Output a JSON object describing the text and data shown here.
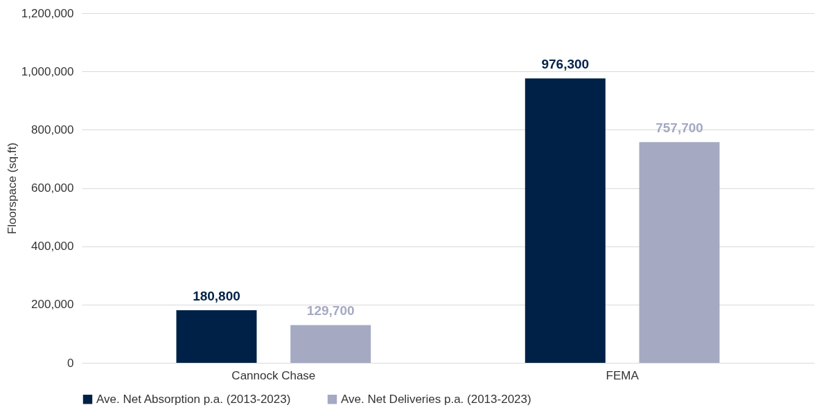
{
  "chart_data": {
    "type": "bar",
    "ylabel": "Floorspace (sq.ft)",
    "categories": [
      "Cannock Chase",
      "FEMA"
    ],
    "series": [
      {
        "name": "Ave. Net Absorption p.a. (2013-2023)",
        "color": "#002147",
        "values": [
          180800,
          976300
        ],
        "value_labels": [
          "180,800",
          "976,300"
        ]
      },
      {
        "name": "Ave. Net Deliveries p.a. (2013-2023)",
        "color": "#a5a9c2",
        "values": [
          129700,
          757700
        ],
        "value_labels": [
          "129,700",
          "757,700"
        ]
      }
    ],
    "ylim": [
      0,
      1200000
    ],
    "yticks": [
      0,
      {
        "value": 200000,
        "label": "200,000"
      },
      {
        "value": 400000,
        "label": "400,000"
      },
      {
        "value": 600000,
        "label": "600,000"
      },
      {
        "value": 800000,
        "label": "800,000"
      },
      {
        "value": 1000000,
        "label": "1,000,000"
      },
      {
        "value": 1200000,
        "label": "1,200,000"
      }
    ],
    "grid": "y",
    "legend": "bottom"
  }
}
